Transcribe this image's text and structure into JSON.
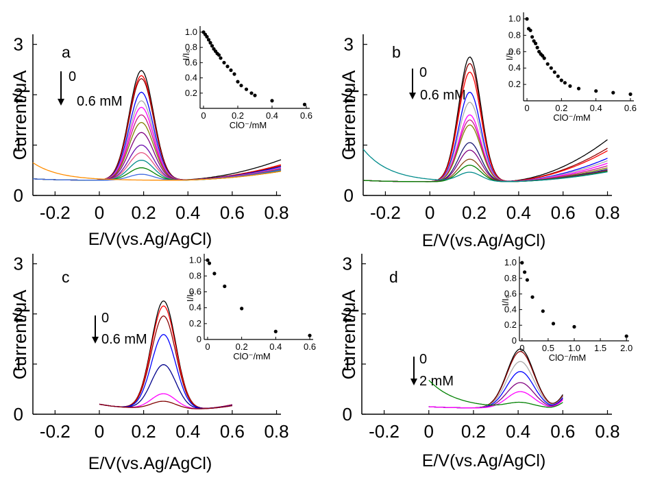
{
  "chart_data": [
    {
      "type": "line",
      "panel_label": "a",
      "xlabel": "E/V(vs.Ag/AgCl)",
      "ylabel": "Current/μA",
      "xlim": [
        -0.3,
        0.82
      ],
      "ylim": [
        0,
        3.2
      ],
      "x_ticks": [
        -0.2,
        0,
        0.2,
        0.4,
        0.6,
        0.8
      ],
      "x_tick_labels": [
        "-0.2",
        "0",
        "0.2",
        "0.4",
        "0.6",
        "0.8"
      ],
      "y_ticks": [
        0,
        1,
        2,
        3
      ],
      "y_tick_labels": [
        "0",
        "1",
        "2",
        "3"
      ],
      "conc_labels": [
        "0",
        "0.6 mM"
      ],
      "curve_shape": {
        "x_start": -0.3,
        "x_end": 0.82,
        "peak_x": 0.19,
        "width": 0.055,
        "base_left": 0.33,
        "base_mid": 0.3,
        "base_right": 0.18
      },
      "series": [
        {
          "color": "#000000",
          "peak": 2.48,
          "tail": 0.5
        },
        {
          "color": "#ff0000",
          "peak": 2.38,
          "tail": 0.4
        },
        {
          "color": "#8b0000",
          "peak": 2.32,
          "tail": 0.38
        },
        {
          "color": "#0000ff",
          "peak": 2.05,
          "tail": 0.36
        },
        {
          "color": "#a9a9a9",
          "peak": 1.88,
          "tail": 0.34
        },
        {
          "color": "#ff00ff",
          "peak": 1.75,
          "tail": 0.33
        },
        {
          "color": "#c71585",
          "peak": 1.6,
          "tail": 0.32
        },
        {
          "color": "#808000",
          "peak": 1.45,
          "tail": 0.31
        },
        {
          "color": "#800080",
          "peak": 1.25,
          "tail": 0.3
        },
        {
          "color": "#6a0dad",
          "peak": 1.0,
          "tail": 0.3
        },
        {
          "color": "#e75480",
          "peak": 0.85,
          "tail": 0.29
        },
        {
          "color": "#008b8b",
          "peak": 0.7,
          "tail": 0.28
        },
        {
          "color": "#008000",
          "peak": 0.55,
          "tail": 0.27
        },
        {
          "color": "#4169e1",
          "peak": 0.42,
          "tail": 0.3
        },
        {
          "color": "#ff8c00",
          "peak": 0.3,
          "tail": 0.27,
          "left": 0.65
        }
      ],
      "inset": {
        "xlabel": "ClO⁻/mM",
        "ylabel": "I/I₀",
        "xlim": [
          -0.02,
          0.62
        ],
        "ylim": [
          0,
          1.08
        ],
        "x_ticks": [
          0,
          0.2,
          0.4,
          0.6
        ],
        "x_tick_labels": [
          "0",
          "0.2",
          "0.4",
          "0.6"
        ],
        "y_ticks": [
          0.2,
          0.4,
          0.6,
          0.8,
          1.0
        ],
        "y_tick_labels": [
          "0.2",
          "0.4",
          "0.6",
          "0.8",
          "1.0"
        ],
        "points": [
          [
            0,
            1.0
          ],
          [
            0.01,
            0.97
          ],
          [
            0.02,
            0.94
          ],
          [
            0.03,
            0.9
          ],
          [
            0.04,
            0.86
          ],
          [
            0.05,
            0.82
          ],
          [
            0.06,
            0.78
          ],
          [
            0.07,
            0.75
          ],
          [
            0.08,
            0.72
          ],
          [
            0.09,
            0.7
          ],
          [
            0.1,
            0.66
          ],
          [
            0.12,
            0.6
          ],
          [
            0.14,
            0.55
          ],
          [
            0.16,
            0.5
          ],
          [
            0.18,
            0.45
          ],
          [
            0.2,
            0.35
          ],
          [
            0.22,
            0.3
          ],
          [
            0.25,
            0.25
          ],
          [
            0.28,
            0.2
          ],
          [
            0.3,
            0.17
          ],
          [
            0.4,
            0.1
          ],
          [
            0.59,
            0.05
          ]
        ]
      }
    },
    {
      "type": "line",
      "panel_label": "b",
      "xlabel": "E/V(vs.Ag/AgCl)",
      "ylabel": "Current/μA",
      "xlim": [
        -0.3,
        0.82
      ],
      "ylim": [
        0,
        3.2
      ],
      "x_ticks": [
        -0.2,
        0,
        0.2,
        0.4,
        0.6,
        0.8
      ],
      "x_tick_labels": [
        "-0.2",
        "0",
        "0.2",
        "0.4",
        "0.6",
        "0.8"
      ],
      "y_ticks": [
        0,
        1,
        2,
        3
      ],
      "y_tick_labels": [
        "0",
        "1",
        "2",
        "3"
      ],
      "conc_labels": [
        "0",
        "0.6 mM"
      ],
      "curve_shape": {
        "x_start": -0.3,
        "x_end": 0.8,
        "peak_x": 0.18,
        "width": 0.05,
        "base_left": 0.3,
        "base_mid": 0.27,
        "base_right": 0.15
      },
      "series": [
        {
          "color": "#000000",
          "peak": 2.75,
          "tail": 0.92
        },
        {
          "color": "#8b0000",
          "peak": 2.62,
          "tail": 0.75
        },
        {
          "color": "#ff0000",
          "peak": 2.45,
          "tail": 0.7
        },
        {
          "color": "#0000ff",
          "peak": 2.05,
          "tail": 0.55
        },
        {
          "color": "#a9a9a9",
          "peak": 1.85,
          "tail": 0.5
        },
        {
          "color": "#ff00ff",
          "peak": 1.6,
          "tail": 0.45
        },
        {
          "color": "#c71585",
          "peak": 1.5,
          "tail": 0.4
        },
        {
          "color": "#808000",
          "peak": 1.4,
          "tail": 0.36
        },
        {
          "color": "#191970",
          "peak": 1.05,
          "tail": 0.33
        },
        {
          "color": "#800080",
          "peak": 0.9,
          "tail": 0.31
        },
        {
          "color": "#8b4513",
          "peak": 0.72,
          "tail": 0.3
        },
        {
          "color": "#008000",
          "peak": 0.6,
          "tail": 0.29
        },
        {
          "color": "#008b8b",
          "peak": 0.45,
          "tail": 0.28,
          "left": 0.92
        }
      ],
      "inset": {
        "xlabel": "ClO⁻/mM",
        "ylabel": "I/I₀",
        "xlim": [
          -0.02,
          0.62
        ],
        "ylim": [
          0,
          1.08
        ],
        "x_ticks": [
          0,
          0.2,
          0.4,
          0.6
        ],
        "x_tick_labels": [
          "0",
          "0.2",
          "0.4",
          "0.6"
        ],
        "y_ticks": [
          0.2,
          0.4,
          0.6,
          0.8,
          1.0
        ],
        "y_tick_labels": [
          "0.2",
          "0.4",
          "0.6",
          "0.8",
          "1.0"
        ],
        "points": [
          [
            0,
            1.0
          ],
          [
            0.01,
            0.88
          ],
          [
            0.02,
            0.86
          ],
          [
            0.03,
            0.78
          ],
          [
            0.04,
            0.73
          ],
          [
            0.05,
            0.7
          ],
          [
            0.06,
            0.65
          ],
          [
            0.07,
            0.6
          ],
          [
            0.08,
            0.57
          ],
          [
            0.09,
            0.55
          ],
          [
            0.1,
            0.52
          ],
          [
            0.12,
            0.45
          ],
          [
            0.14,
            0.4
          ],
          [
            0.16,
            0.35
          ],
          [
            0.18,
            0.3
          ],
          [
            0.2,
            0.25
          ],
          [
            0.22,
            0.22
          ],
          [
            0.25,
            0.18
          ],
          [
            0.3,
            0.15
          ],
          [
            0.4,
            0.12
          ],
          [
            0.5,
            0.1
          ],
          [
            0.6,
            0.08
          ]
        ]
      }
    },
    {
      "type": "line",
      "panel_label": "c",
      "xlabel": "E/V(vs.Ag/AgCl)",
      "ylabel": "Current/μA",
      "xlim": [
        -0.3,
        0.82
      ],
      "ylim": [
        0,
        3.2
      ],
      "x_ticks": [
        -0.2,
        0,
        0.2,
        0.4,
        0.6,
        0.8
      ],
      "x_tick_labels": [
        "-0.2",
        "0",
        "0.2",
        "0.4",
        "0.6",
        "0.8"
      ],
      "y_ticks": [
        0,
        1,
        2,
        3
      ],
      "y_tick_labels": [
        "0",
        "1",
        "2",
        "3"
      ],
      "conc_labels": [
        "0",
        "0.6 mM"
      ],
      "curve_shape": {
        "x_start": 0.0,
        "x_end": 0.6,
        "peak_x": 0.29,
        "width": 0.055,
        "base_left": 0.2,
        "base_mid": 0.1,
        "base_right": 0.12
      },
      "series": [
        {
          "color": "#000000",
          "peak": 2.25,
          "tail": 0.12
        },
        {
          "color": "#ff0000",
          "peak": 2.15,
          "tail": 0.12
        },
        {
          "color": "#8b0000",
          "peak": 1.95,
          "tail": 0.11
        },
        {
          "color": "#0000ff",
          "peak": 1.58,
          "tail": 0.11
        },
        {
          "color": "#00008b",
          "peak": 0.98,
          "tail": 0.1
        },
        {
          "color": "#ff00ff",
          "peak": 0.4,
          "tail": 0.1
        },
        {
          "color": "#800000",
          "peak": 0.25,
          "tail": 0.1
        }
      ],
      "inset": {
        "xlabel": "ClO⁻/mM",
        "ylabel": "I/I₀",
        "xlim": [
          -0.02,
          0.62
        ],
        "ylim": [
          0,
          1.08
        ],
        "x_ticks": [
          0,
          0.2,
          0.4,
          0.6
        ],
        "x_tick_labels": [
          "0",
          "0.2",
          "0.4",
          "0.6"
        ],
        "y_ticks": [
          0,
          0.2,
          0.4,
          0.6,
          0.8,
          1.0
        ],
        "y_tick_labels": [
          "0",
          "0.2",
          "0.4",
          "0.6",
          "0.8",
          "1.0"
        ],
        "points": [
          [
            0,
            1.0
          ],
          [
            0.01,
            0.96
          ],
          [
            0.04,
            0.83
          ],
          [
            0.1,
            0.67
          ],
          [
            0.2,
            0.39
          ],
          [
            0.4,
            0.1
          ],
          [
            0.6,
            0.05
          ]
        ]
      }
    },
    {
      "type": "line",
      "panel_label": "d",
      "xlabel": "E/V(vs.Ag/AgCl)",
      "ylabel": "Current/μA",
      "xlim": [
        -0.3,
        0.82
      ],
      "ylim": [
        0,
        3.2
      ],
      "x_ticks": [
        -0.2,
        0,
        0.2,
        0.4,
        0.6,
        0.8
      ],
      "x_tick_labels": [
        "-0.2",
        "0",
        "0.2",
        "0.4",
        "0.6",
        "0.8"
      ],
      "y_ticks": [
        0,
        1,
        2,
        3
      ],
      "y_tick_labels": [
        "0",
        "1",
        "2",
        "3"
      ],
      "conc_labels": [
        "0",
        "2 mM"
      ],
      "curve_shape": {
        "x_start": 0.0,
        "x_end": 0.6,
        "peak_x": 0.41,
        "width": 0.06,
        "base_left": 0.15,
        "base_mid": 0.12,
        "base_right": 0.25
      },
      "series": [
        {
          "color": "#000000",
          "peak": 1.3,
          "tail": 0.3
        },
        {
          "color": "#8b0000",
          "peak": 1.25,
          "tail": 0.28
        },
        {
          "color": "#a9a9a9",
          "peak": 1.05,
          "tail": 0.26
        },
        {
          "color": "#0000ff",
          "peak": 0.85,
          "tail": 0.24
        },
        {
          "color": "#800080",
          "peak": 0.63,
          "tail": 0.22
        },
        {
          "color": "#ff00ff",
          "peak": 0.45,
          "tail": 0.2
        },
        {
          "color": "#008000",
          "peak": 0.22,
          "tail": 0.15,
          "left": 0.68
        }
      ],
      "inset": {
        "xlabel": "ClO⁻/mM",
        "ylabel": "I/I₀",
        "xlim": [
          -0.05,
          2.05
        ],
        "ylim": [
          0,
          1.08
        ],
        "x_ticks": [
          0,
          0.5,
          1.0,
          1.5,
          2.0
        ],
        "x_tick_labels": [
          "0",
          "0.5",
          "1.0",
          "1.5",
          "2.0"
        ],
        "y_ticks": [
          0,
          0.2,
          0.4,
          0.6,
          0.8,
          1.0
        ],
        "y_tick_labels": [
          "0",
          "0.2",
          "0.4",
          "0.6",
          "0.8",
          "1.0"
        ],
        "points": [
          [
            0,
            1.0
          ],
          [
            0.05,
            0.88
          ],
          [
            0.1,
            0.78
          ],
          [
            0.2,
            0.56
          ],
          [
            0.4,
            0.38
          ],
          [
            0.6,
            0.22
          ],
          [
            1.0,
            0.18
          ],
          [
            2.0,
            0.06
          ]
        ]
      }
    }
  ]
}
